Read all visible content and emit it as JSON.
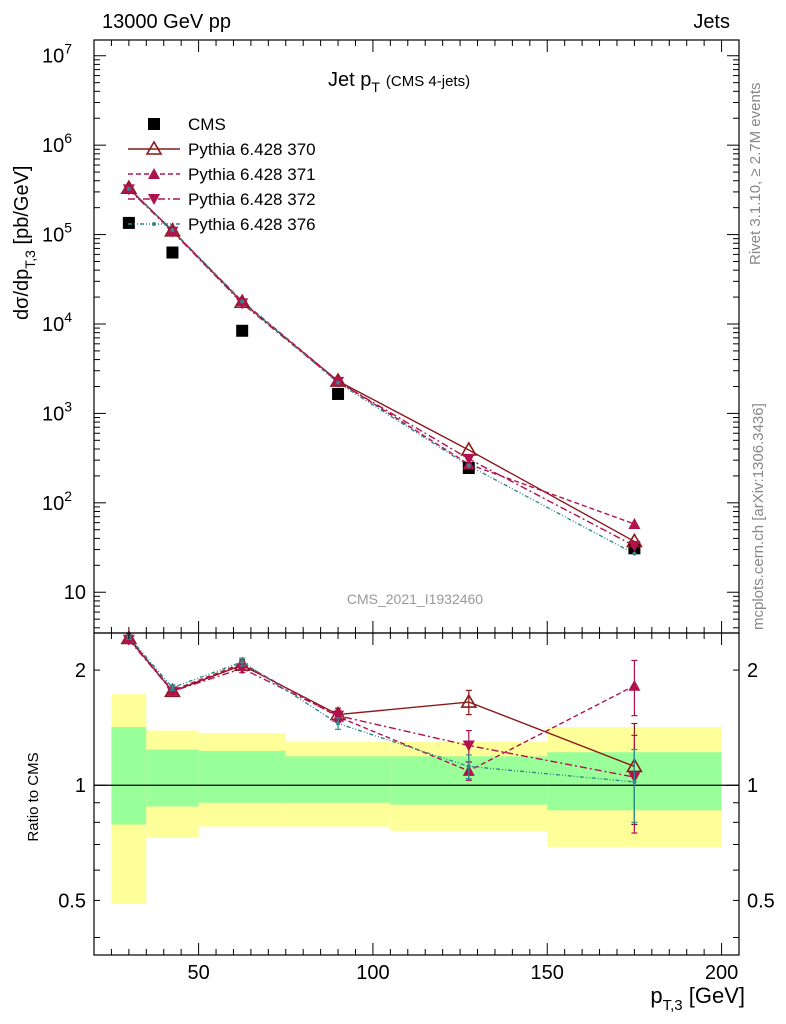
{
  "header": {
    "left": "13000 GeV pp",
    "right": "Jets"
  },
  "side": {
    "rivet": "Rivet 3.1.10, ≥ 2.7M events",
    "mcplots": "mcplots.cern.ch [arXiv:1306.3436]"
  },
  "analysis_id": "CMS_2021_I1932460",
  "chart_data": [
    {
      "type": "scatter",
      "title": "Jet p_T (CMS 4-jets)",
      "title_main": "Jet p",
      "title_sub": "T",
      "title_extra": "(CMS 4-jets)",
      "ylabel_pre": "dσ/dp",
      "ylabel_sub": "T,3",
      "ylabel_post": " [pb/GeV]",
      "xlim": [
        20,
        205
      ],
      "ylim": [
        3.5,
        15000000
      ],
      "yscale": "log",
      "x_bins": [
        [
          25,
          35
        ],
        [
          35,
          50
        ],
        [
          50,
          75
        ],
        [
          75,
          105
        ],
        [
          105,
          150
        ],
        [
          150,
          200
        ]
      ],
      "x_centers": [
        30,
        42.5,
        62.5,
        90,
        127.5,
        175
      ],
      "y_tick_labels": [
        "10",
        "10^2",
        "10^3",
        "10^4",
        "10^5",
        "10^6",
        "10^7"
      ],
      "legend_position": "top-left",
      "series": [
        {
          "name": "CMS",
          "marker": "square",
          "color": "#000000",
          "line": "none",
          "values": [
            135000,
            63000,
            8400,
            1650,
            245,
            31
          ]
        },
        {
          "name": "Pythia 6.428 370",
          "marker": "triangle-up-open",
          "color": "#8b1a1a",
          "line": "solid",
          "values": [
            330000,
            110000,
            17500,
            2300,
            390,
            37
          ]
        },
        {
          "name": "Pythia 6.428 371",
          "marker": "triangle-up",
          "color": "#b0124e",
          "line": "dashed",
          "values": [
            330000,
            110000,
            18000,
            2300,
            270,
            58
          ]
        },
        {
          "name": "Pythia 6.428 372",
          "marker": "triangle-down",
          "color": "#b0124e",
          "line": "dashdot",
          "values": [
            320000,
            108000,
            17000,
            2250,
            310,
            33
          ]
        },
        {
          "name": "Pythia 6.428 376",
          "marker": "dot",
          "color": "#2e8b8b",
          "line": "dashdotdot",
          "values": [
            325000,
            112000,
            17800,
            2200,
            260,
            27
          ]
        }
      ]
    },
    {
      "type": "scatter",
      "ylabel": "Ratio to CMS",
      "xlabel_pre": "p",
      "xlabel_sub": "T,3",
      "xlabel_post": " [GeV]",
      "xlim": [
        20,
        205
      ],
      "ylim": [
        0.36,
        2.5
      ],
      "yscale": "log",
      "x_ticks": [
        50,
        100,
        150,
        200
      ],
      "y_ticks": [
        0.5,
        1,
        2
      ],
      "reference_line": 1,
      "band_inner": [
        [
          0.79,
          1.42
        ],
        [
          0.88,
          1.24
        ],
        [
          0.9,
          1.23
        ],
        [
          0.9,
          1.19
        ],
        [
          0.89,
          1.19
        ],
        [
          0.86,
          1.22
        ]
      ],
      "band_outer": [
        [
          0.49,
          1.73
        ],
        [
          0.73,
          1.39
        ],
        [
          0.78,
          1.37
        ],
        [
          0.78,
          1.3
        ],
        [
          0.76,
          1.3
        ],
        [
          0.69,
          1.42
        ]
      ],
      "colors": {
        "inner_band": "#99ff99",
        "outer_band": "#ffff99"
      },
      "series": [
        {
          "name": "Pythia 6.428 370",
          "values": [
            2.42,
            1.76,
            2.06,
            1.53,
            1.65,
            1.12
          ],
          "err": [
            0.03,
            0.03,
            0.05,
            0.06,
            0.12,
            0.33
          ]
        },
        {
          "name": "Pythia 6.428 371",
          "values": [
            2.43,
            1.77,
            2.08,
            1.51,
            1.09,
            1.82
          ],
          "err": [
            0.03,
            0.03,
            0.05,
            0.05,
            0.06,
            0.3
          ]
        },
        {
          "name": "Pythia 6.428 372",
          "values": [
            2.4,
            1.76,
            2.02,
            1.52,
            1.27,
            1.05
          ],
          "err": [
            0.03,
            0.03,
            0.05,
            0.05,
            0.12,
            0.3
          ]
        },
        {
          "name": "Pythia 6.428 376",
          "values": [
            2.44,
            1.8,
            2.1,
            1.45,
            1.12,
            1.02
          ],
          "err": [
            0.03,
            0.03,
            0.05,
            0.05,
            0.08,
            0.22
          ]
        }
      ]
    }
  ]
}
